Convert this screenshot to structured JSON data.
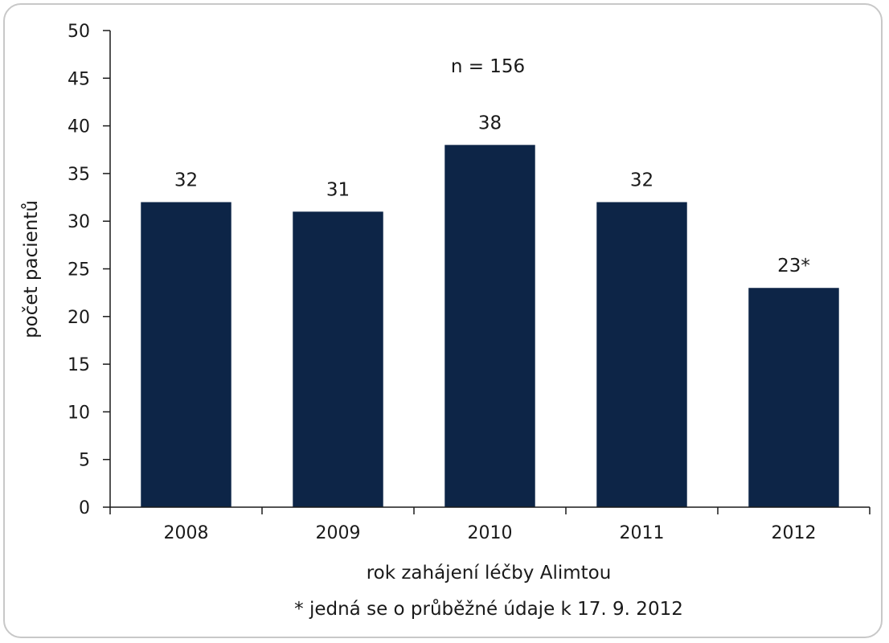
{
  "chart_data": {
    "type": "bar",
    "categories": [
      "2008",
      "2009",
      "2010",
      "2011",
      "2012"
    ],
    "values": [
      32,
      31,
      38,
      32,
      23
    ],
    "data_labels": [
      "32",
      "31",
      "38",
      "32",
      "23*"
    ],
    "title": "",
    "annotation": "n = 156",
    "xlabel": "rok zahájení léčby Alimtou",
    "ylabel": "počet pacientů",
    "footnote": "* jedná se o průběžné údaje k 17. 9. 2012",
    "ylim": [
      0,
      50
    ],
    "yticks": [
      0,
      5,
      10,
      15,
      20,
      25,
      30,
      35,
      40,
      45,
      50
    ],
    "grid": false,
    "legend": "none",
    "bar_color": "#0d2547"
  }
}
